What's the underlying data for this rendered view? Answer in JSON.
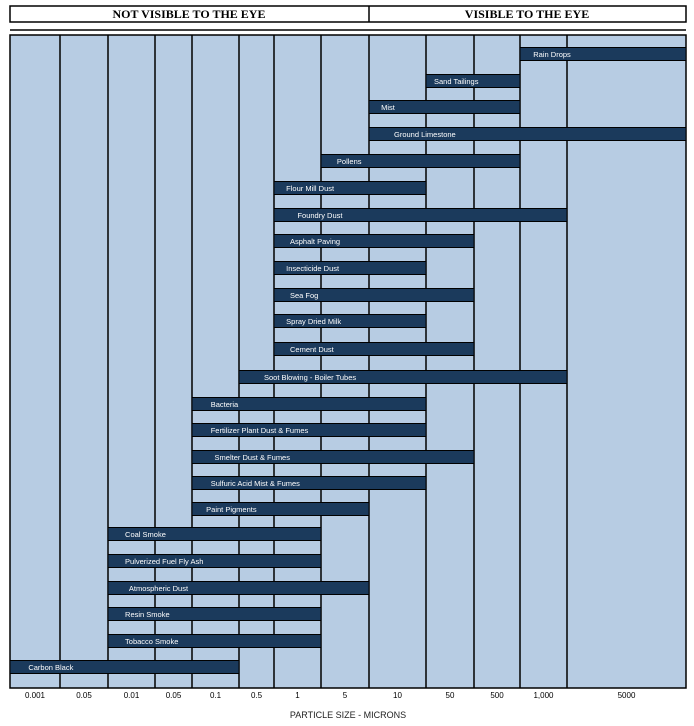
{
  "chart_data": {
    "type": "bar",
    "orientation": "horizontal-range",
    "headers": {
      "left": "NOT VISIBLE TO THE EYE",
      "right": "VISIBLE TO THE EYE"
    },
    "xlabel": "PARTICLE SIZE - MICRONS",
    "tick_labels": [
      "0.001",
      "0.05",
      "0.01",
      "0.05",
      "0.1",
      "0.5",
      "1",
      "5",
      "10",
      "50",
      "500",
      "1,000",
      "5000"
    ],
    "colors": {
      "background": "#b7cce3",
      "bar": "#1b3a5c",
      "line": "#000000"
    },
    "series": [
      {
        "label": "Rain Drops",
        "start": "1,000",
        "end": "5000"
      },
      {
        "label": "Sand Tailings",
        "start": "50",
        "end": "500"
      },
      {
        "label": "Mist",
        "start": "10",
        "end": "500"
      },
      {
        "label": "Ground Limestone",
        "start": "10",
        "end": "5000"
      },
      {
        "label": "Pollens",
        "start": "5",
        "end": "500"
      },
      {
        "label": "Flour Mill Dust",
        "start": "1",
        "end": "10"
      },
      {
        "label": "Foundry Dust",
        "start": "1",
        "end": "1,000"
      },
      {
        "label": "Asphalt Paving",
        "start": "1",
        "end": "50"
      },
      {
        "label": "Insecticide Dust",
        "start": "1",
        "end": "10"
      },
      {
        "label": "Sea Fog",
        "start": "1",
        "end": "50"
      },
      {
        "label": "Spray Dried Milk",
        "start": "1",
        "end": "10"
      },
      {
        "label": "Cement Dust",
        "start": "1",
        "end": "50"
      },
      {
        "label": "Soot Blowing - Boiler Tubes",
        "start": "0.5",
        "end": "1,000"
      },
      {
        "label": "Bacteria",
        "start": "0.1",
        "end": "10"
      },
      {
        "label": "Fertilizer Plant Dust & Fumes",
        "start": "0.1",
        "end": "10"
      },
      {
        "label": "Smelter Dust & Fumes",
        "start": "0.1",
        "end": "50"
      },
      {
        "label": "Sulfuric Acid Mist & Fumes",
        "start": "0.1",
        "end": "10"
      },
      {
        "label": "Paint Pigments",
        "start": "0.1",
        "end": "5"
      },
      {
        "label": "Coal Smoke",
        "start": "0.01",
        "end": "1"
      },
      {
        "label": "Pulverized Fuel Fly Ash",
        "start": "0.01",
        "end": "1"
      },
      {
        "label": "Atmospheric Dust",
        "start": "0.01",
        "end": "5"
      },
      {
        "label": "Resin Smoke",
        "start": "0.01",
        "end": "1"
      },
      {
        "label": "Tobacco Smoke",
        "start": "0.01",
        "end": "1"
      },
      {
        "label": "Carbon Black",
        "start": "0.001",
        "end": "0.1"
      }
    ]
  }
}
